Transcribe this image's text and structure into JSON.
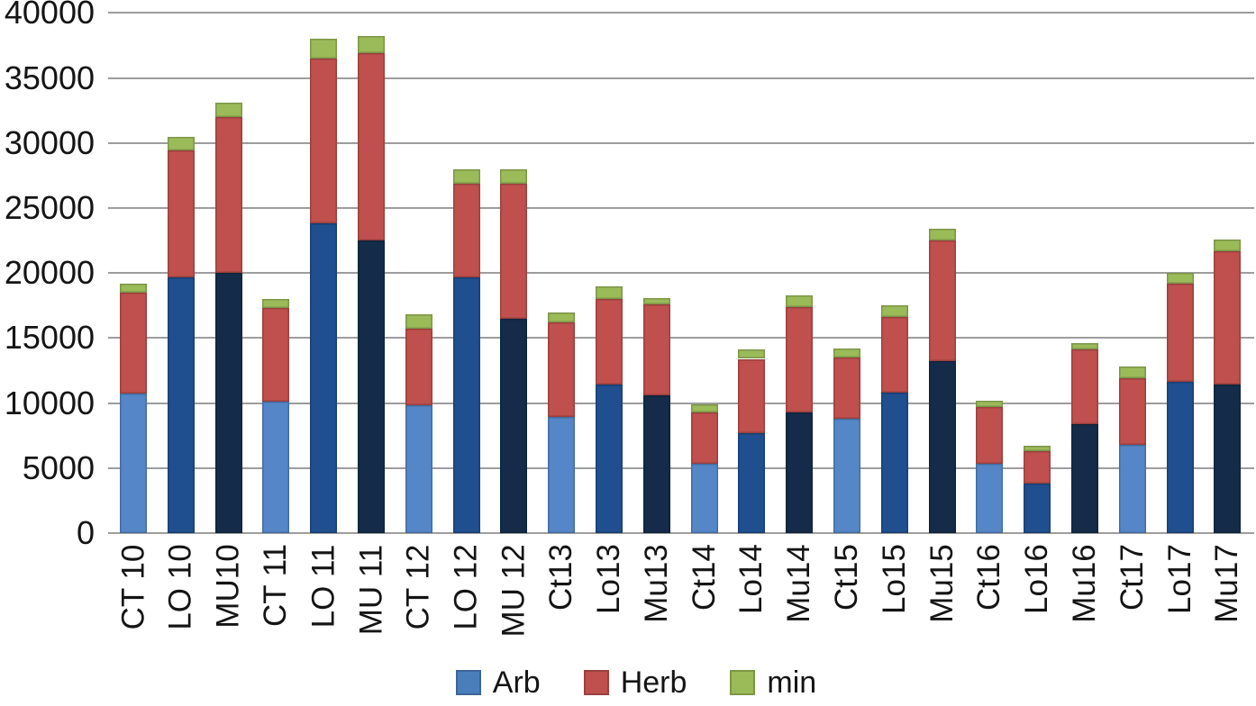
{
  "chart_data": {
    "type": "bar",
    "stacked": true,
    "title": "",
    "xlabel": "",
    "ylabel": "",
    "categories": [
      "CT 10",
      "LO 10",
      "MU10",
      "CT 11",
      "LO 11",
      "MU 11",
      "CT 12",
      "LO 12",
      "MU 12",
      "Ct13",
      "Lo13",
      "Mu13",
      "Ct14",
      "Lo14",
      "Mu14",
      "Ct15",
      "Lo15",
      "Mu15",
      "Ct16",
      "Lo16",
      "Mu16",
      "Ct17",
      "Lo17",
      "Mu17"
    ],
    "series": [
      {
        "name": "Arb",
        "values": [
          10700,
          19700,
          20000,
          10100,
          23800,
          22500,
          9800,
          19700,
          16500,
          8900,
          11400,
          10600,
          5300,
          7700,
          9300,
          8800,
          10800,
          13200,
          5300,
          3800,
          8400,
          6800,
          11600,
          11400
        ]
      },
      {
        "name": "Herb",
        "values": [
          7800,
          9700,
          12000,
          7200,
          12700,
          14400,
          5900,
          7200,
          10400,
          7300,
          6600,
          7000,
          4000,
          5700,
          8100,
          4700,
          5800,
          9300,
          4400,
          2500,
          5700,
          5100,
          7600,
          10300
        ]
      },
      {
        "name": "min",
        "values": [
          700,
          1100,
          1100,
          700,
          1500,
          1300,
          1100,
          1100,
          1100,
          800,
          1000,
          500,
          600,
          700,
          900,
          700,
          900,
          900,
          500,
          450,
          500,
          900,
          800,
          900
        ]
      }
    ],
    "totals": [
      19200,
      30500,
      33100,
      18000,
      38000,
      38200,
      16800,
      28000,
      28000,
      17000,
      19000,
      18100,
      9900,
      14100,
      18300,
      14200,
      17500,
      23400,
      10200,
      6750,
      14600,
      12800,
      20000,
      22600
    ],
    "ylim": [
      0,
      40000
    ],
    "yticks": [
      "0",
      "5000",
      "10000",
      "15000",
      "20000",
      "25000",
      "30000",
      "35000",
      "40000"
    ],
    "grid": true,
    "legend_position": "bottom",
    "colors": {
      "arb_ct": "#5587c8",
      "arb_lo": "#1f4f8f",
      "arb_mu": "#142c49",
      "herb": "#c0504d",
      "min": "#9bbb59",
      "legend_arb": "#4a7ebb",
      "gridline": "#9d9d9d",
      "axis_text": "#141414"
    }
  },
  "legend": {
    "items": [
      {
        "label": "Arb"
      },
      {
        "label": "Herb"
      },
      {
        "label": "min"
      }
    ]
  }
}
